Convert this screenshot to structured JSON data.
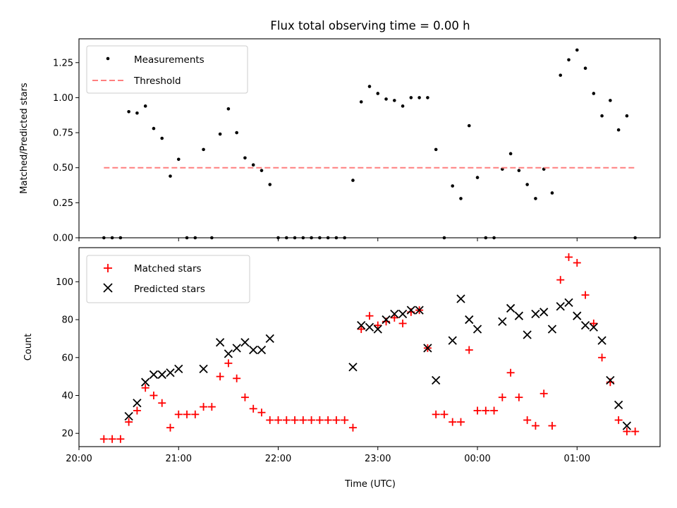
{
  "figure": {
    "title": "Flux total observing time = 0.00 h",
    "xlabel": "Time (UTC)"
  },
  "chart_data": [
    {
      "type": "scatter",
      "ylabel": "Matched/Predicted stars",
      "ylim": [
        0,
        1.42
      ],
      "yticks": [
        "0.00",
        "0.25",
        "0.50",
        "0.75",
        "1.00",
        "1.25"
      ],
      "ytick_values": [
        0,
        0.25,
        0.5,
        0.75,
        1.0,
        1.25
      ],
      "xlim": [
        "20:00",
        "01:50"
      ],
      "legend": {
        "placement": "top-left",
        "entries": [
          "Measurements",
          "Threshold"
        ]
      },
      "grid": false,
      "series": [
        {
          "name": "Measurements",
          "color": "#000000",
          "marker": "dot",
          "x": [
            "20:15",
            "20:20",
            "20:25",
            "20:30",
            "20:35",
            "20:40",
            "20:45",
            "20:50",
            "20:55",
            "21:00",
            "21:05",
            "21:10",
            "21:15",
            "21:20",
            "21:25",
            "21:30",
            "21:35",
            "21:40",
            "21:45",
            "21:50",
            "21:55",
            "22:00",
            "22:05",
            "22:10",
            "22:15",
            "22:20",
            "22:25",
            "22:30",
            "22:35",
            "22:40",
            "22:45",
            "22:50",
            "22:55",
            "23:00",
            "23:05",
            "23:10",
            "23:15",
            "23:20",
            "23:25",
            "23:30",
            "23:35",
            "23:40",
            "23:45",
            "23:50",
            "23:55",
            "00:00",
            "00:05",
            "00:10",
            "00:15",
            "00:20",
            "00:25",
            "00:30",
            "00:35",
            "00:40",
            "00:45",
            "00:50",
            "00:55",
            "01:00",
            "01:05",
            "01:10",
            "01:15",
            "01:20",
            "01:25",
            "01:30",
            "01:35"
          ],
          "y": [
            0.0,
            0.0,
            0.0,
            0.9,
            0.89,
            0.94,
            0.78,
            0.71,
            0.44,
            0.56,
            0.0,
            0.0,
            0.63,
            0.0,
            0.74,
            0.92,
            0.75,
            0.57,
            0.52,
            0.48,
            0.38,
            0.0,
            0.0,
            0.0,
            0.0,
            0.0,
            0.0,
            0.0,
            0.0,
            0.0,
            0.41,
            0.97,
            1.08,
            1.03,
            0.99,
            0.98,
            0.94,
            1.0,
            1.0,
            1.0,
            0.63,
            0.0,
            0.37,
            0.28,
            0.8,
            0.43,
            0.0,
            0.0,
            0.49,
            0.6,
            0.48,
            0.38,
            0.28,
            0.49,
            0.32,
            1.16,
            1.27,
            1.34,
            1.21,
            1.03,
            0.87,
            0.98,
            0.77,
            0.87,
            0.0
          ]
        },
        {
          "name": "Threshold",
          "color": "#ff7f7f",
          "style": "dashed",
          "x": [
            "20:15",
            "01:35"
          ],
          "y": [
            0.5,
            0.5
          ]
        }
      ]
    },
    {
      "type": "scatter",
      "ylabel": "Count",
      "xlabel": "Time (UTC)",
      "ylim": [
        13,
        118
      ],
      "yticks": [
        "20",
        "40",
        "60",
        "80",
        "100"
      ],
      "ytick_values": [
        20,
        40,
        60,
        80,
        100
      ],
      "xlim": [
        "20:00",
        "01:50"
      ],
      "xticks": [
        "20:00",
        "21:00",
        "22:00",
        "23:00",
        "00:00",
        "01:00"
      ],
      "legend": {
        "placement": "top-left",
        "entries": [
          "Matched stars",
          "Predicted stars"
        ]
      },
      "grid": false,
      "series": [
        {
          "name": "Matched stars",
          "color": "#ff0000",
          "marker": "plus",
          "x": [
            "20:15",
            "20:20",
            "20:25",
            "20:30",
            "20:35",
            "20:40",
            "20:45",
            "20:50",
            "20:55",
            "21:00",
            "21:05",
            "21:10",
            "21:15",
            "21:20",
            "21:25",
            "21:30",
            "21:35",
            "21:40",
            "21:45",
            "21:50",
            "21:55",
            "22:00",
            "22:05",
            "22:10",
            "22:15",
            "22:20",
            "22:25",
            "22:30",
            "22:35",
            "22:40",
            "22:45",
            "22:50",
            "22:55",
            "23:00",
            "23:05",
            "23:10",
            "23:15",
            "23:20",
            "23:25",
            "23:30",
            "23:35",
            "23:40",
            "23:45",
            "23:50",
            "23:55",
            "00:00",
            "00:05",
            "00:10",
            "00:15",
            "00:20",
            "00:25",
            "00:30",
            "00:35",
            "00:40",
            "00:45",
            "00:50",
            "00:55",
            "01:00",
            "01:05",
            "01:10",
            "01:15",
            "01:20",
            "01:25",
            "01:30",
            "01:35"
          ],
          "y": [
            17,
            17,
            17,
            26,
            32,
            44,
            40,
            36,
            23,
            30,
            30,
            30,
            34,
            34,
            50,
            57,
            49,
            39,
            33,
            31,
            27,
            27,
            27,
            27,
            27,
            27,
            27,
            27,
            27,
            27,
            23,
            75,
            82,
            77,
            79,
            81,
            78,
            84,
            85,
            65,
            30,
            30,
            26,
            26,
            64,
            32,
            32,
            32,
            39,
            52,
            39,
            27,
            24,
            41,
            24,
            101,
            113,
            110,
            93,
            78,
            60,
            47,
            27,
            21,
            21
          ]
        },
        {
          "name": "Predicted stars",
          "color": "#000000",
          "marker": "x",
          "x": [
            "20:30",
            "20:35",
            "20:40",
            "20:45",
            "20:50",
            "20:55",
            "21:00",
            "21:15",
            "21:25",
            "21:30",
            "21:35",
            "21:40",
            "21:45",
            "21:50",
            "21:55",
            "22:45",
            "22:50",
            "22:55",
            "23:00",
            "23:05",
            "23:10",
            "23:15",
            "23:20",
            "23:25",
            "23:30",
            "23:35",
            "23:45",
            "23:50",
            "23:55",
            "00:00",
            "00:15",
            "00:20",
            "00:25",
            "00:30",
            "00:35",
            "00:40",
            "00:45",
            "00:50",
            "00:55",
            "01:00",
            "01:05",
            "01:10",
            "01:15",
            "01:20",
            "01:25",
            "01:30"
          ],
          "y": [
            29,
            36,
            47,
            51,
            51,
            52,
            54,
            54,
            68,
            62,
            65,
            68,
            64,
            64,
            70,
            55,
            77,
            76,
            75,
            80,
            83,
            83,
            85,
            85,
            65,
            48,
            69,
            91,
            80,
            75,
            79,
            86,
            82,
            72,
            83,
            84,
            75,
            87,
            89,
            82,
            77,
            76,
            69,
            48,
            35,
            24
          ]
        }
      ]
    }
  ]
}
